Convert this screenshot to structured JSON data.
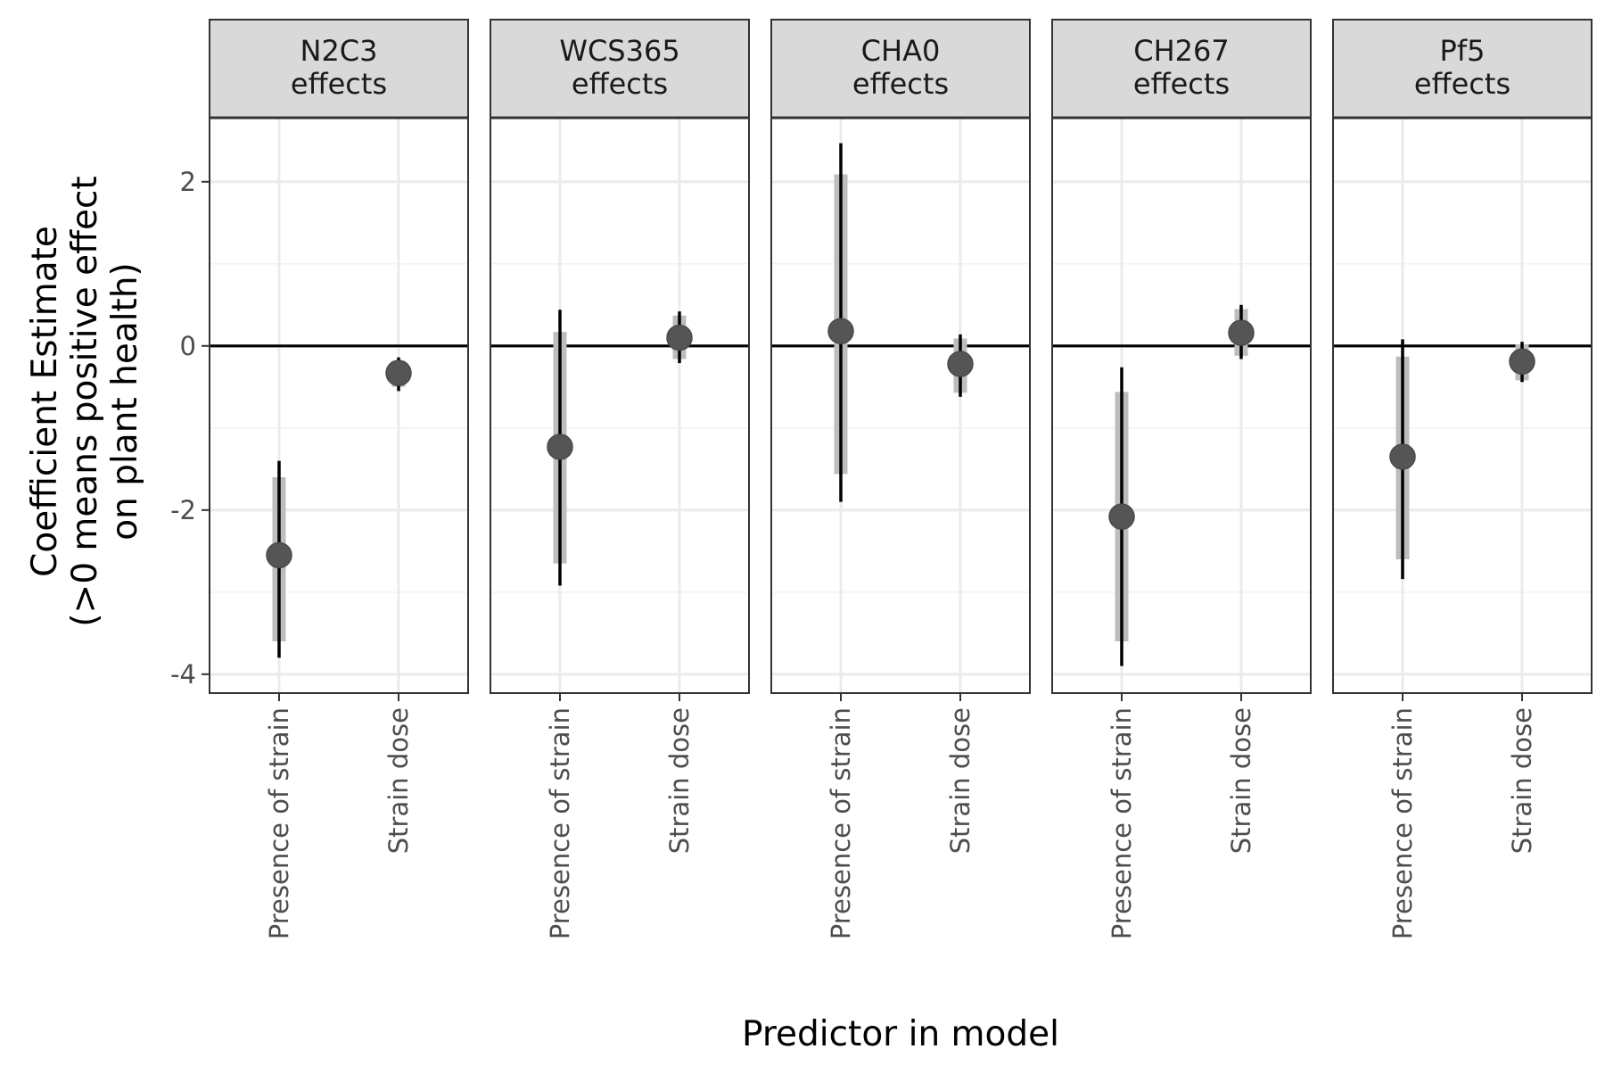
{
  "chart_data": {
    "type": "errorbar",
    "xlabel": "Predictor in model",
    "ylabel_lines": [
      "Coefficient Estimate",
      "(>0 means positive effect",
      "on plant health)"
    ],
    "ylim": [
      -4.23,
      2.78
    ],
    "y_ticks": [
      2,
      0,
      -2,
      -4
    ],
    "y_tick_labels": [
      "2",
      "0",
      "-2",
      "-4"
    ],
    "reference_line": 0,
    "grid": true,
    "categories": [
      "Presence of strain",
      "Strain dose"
    ],
    "facets": [
      {
        "label_lines": [
          "N2C3",
          "effects"
        ],
        "points": [
          {
            "category": "Presence of strain",
            "estimate": -2.55,
            "inner": [
              -3.6,
              -1.6
            ],
            "outer": [
              -3.8,
              -1.4
            ]
          },
          {
            "category": "Strain dose",
            "estimate": -0.33,
            "inner": [
              -0.5,
              -0.18
            ],
            "outer": [
              -0.55,
              -0.14
            ]
          }
        ]
      },
      {
        "label_lines": [
          "WCS365",
          "effects"
        ],
        "points": [
          {
            "category": "Presence of strain",
            "estimate": -1.23,
            "inner": [
              -2.65,
              0.17
            ],
            "outer": [
              -2.92,
              0.44
            ]
          },
          {
            "category": "Strain dose",
            "estimate": 0.1,
            "inner": [
              -0.16,
              0.37
            ],
            "outer": [
              -0.21,
              0.42
            ]
          }
        ]
      },
      {
        "label_lines": [
          "CHA0",
          "effects"
        ],
        "points": [
          {
            "category": "Presence of strain",
            "estimate": 0.18,
            "inner": [
              -1.56,
              2.09
            ],
            "outer": [
              -1.9,
              2.47
            ]
          },
          {
            "category": "Strain dose",
            "estimate": -0.22,
            "inner": [
              -0.57,
              0.09
            ],
            "outer": [
              -0.62,
              0.14
            ]
          }
        ]
      },
      {
        "label_lines": [
          "CH267",
          "effects"
        ],
        "points": [
          {
            "category": "Presence of strain",
            "estimate": -2.08,
            "inner": [
              -3.6,
              -0.56
            ],
            "outer": [
              -3.9,
              -0.26
            ]
          },
          {
            "category": "Strain dose",
            "estimate": 0.16,
            "inner": [
              -0.12,
              0.45
            ],
            "outer": [
              -0.16,
              0.5
            ]
          }
        ]
      },
      {
        "label_lines": [
          "Pf5",
          "effects"
        ],
        "points": [
          {
            "category": "Presence of strain",
            "estimate": -1.35,
            "inner": [
              -2.6,
              -0.13
            ],
            "outer": [
              -2.84,
              0.08
            ]
          },
          {
            "category": "Strain dose",
            "estimate": -0.19,
            "inner": [
              -0.42,
              0.02
            ],
            "outer": [
              -0.44,
              0.05
            ]
          }
        ]
      }
    ],
    "colors": {
      "point": "#555555",
      "inner_interval": "#bdbdbd",
      "outer_interval": "#000000",
      "strip_fill": "#d9d9d9",
      "grid_major": "#ebebeb",
      "grid_minor": "#f2f2f2",
      "panel_border": "#333333"
    }
  }
}
